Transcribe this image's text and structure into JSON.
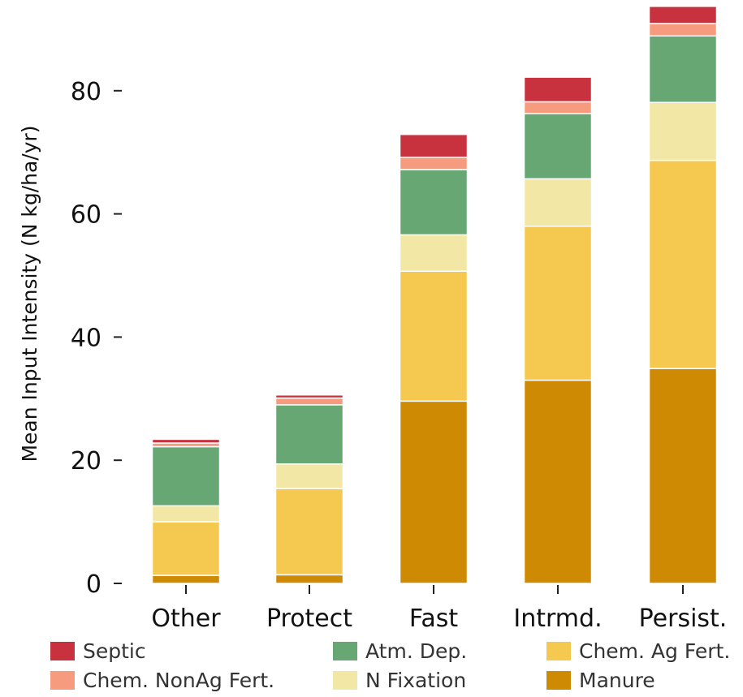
{
  "chart_data": {
    "type": "bar",
    "stacked": true,
    "categories": [
      "Other",
      "Protect",
      "Fast",
      "Intrmd.",
      "Persist."
    ],
    "series": [
      {
        "name": "Manure",
        "color": "#cf8a04",
        "values": [
          1.3,
          1.4,
          29.6,
          33.0,
          34.9
        ]
      },
      {
        "name": "Chem. Ag Fert.",
        "color": "#f5c84f",
        "values": [
          8.7,
          14.0,
          21.1,
          25.0,
          33.8
        ]
      },
      {
        "name": "N Fixation",
        "color": "#f2e7a4",
        "values": [
          2.6,
          4.0,
          5.9,
          7.7,
          9.4
        ]
      },
      {
        "name": "Atm. Dep.",
        "color": "#67a774",
        "values": [
          9.6,
          9.6,
          10.6,
          10.6,
          10.8
        ]
      },
      {
        "name": "Chem. NonAg Fert.",
        "color": "#f79b7f",
        "values": [
          0.6,
          1.1,
          2.0,
          1.9,
          2.0
        ]
      },
      {
        "name": "Septic",
        "color": "#c7323e",
        "values": [
          0.6,
          0.5,
          3.7,
          4.0,
          2.8
        ]
      }
    ],
    "ylabel": "Mean Input Intensity (N kg/ha/yr)",
    "xlabel": "",
    "ylim": [
      0,
      93.5
    ],
    "yticks": [
      0,
      20,
      40,
      60,
      80
    ],
    "grid": false,
    "legend": {
      "placement": "bottom",
      "order": [
        "Septic",
        "Atm. Dep.",
        "Chem. Ag Fert.",
        "Chem. NonAg Fert.",
        "N Fixation",
        "Manure"
      ]
    }
  }
}
